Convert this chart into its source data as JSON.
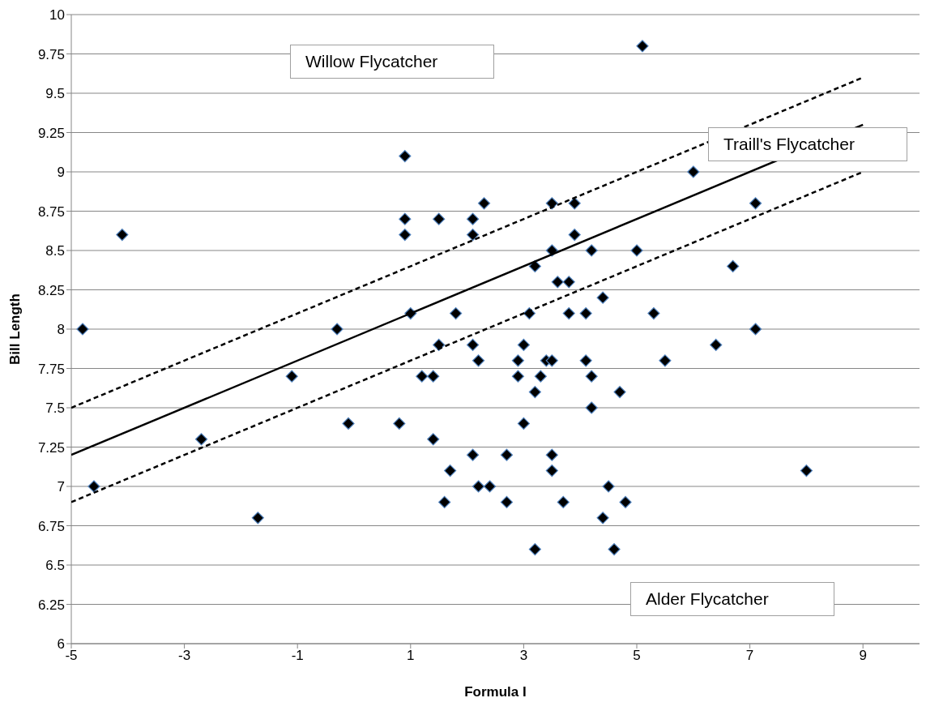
{
  "chart_data": {
    "type": "scatter",
    "xlabel": "Formula I",
    "ylabel": "Bill Length",
    "xlim": [
      -5,
      10
    ],
    "xticks": [
      -5,
      -3,
      -1,
      1,
      3,
      5,
      7,
      9
    ],
    "ylim": [
      6,
      10
    ],
    "yticks": [
      6,
      6.25,
      6.5,
      6.75,
      7,
      7.25,
      7.5,
      7.75,
      8,
      8.25,
      8.5,
      8.75,
      9,
      9.25,
      9.5,
      9.75,
      10
    ],
    "grid": "y",
    "legend": false,
    "marker": "diamond",
    "annotations": [
      "Willow Flycatcher",
      "Traill's Flycatcher",
      "Alder Flycatcher"
    ],
    "series": [
      {
        "color": "#000000",
        "x": [
          -4.8,
          -4.1,
          -2.7,
          -4.6,
          -1.7,
          -1.1,
          -0.3,
          -0.1,
          0.9,
          0.9,
          0.9,
          1.0,
          0.8,
          1.5,
          1.5,
          1.2,
          1.4,
          1.4,
          1.8,
          1.7,
          1.6,
          2.1,
          2.1,
          2.3,
          2.1,
          2.2,
          2.1,
          2.2,
          2.4,
          2.7,
          2.7,
          2.9,
          2.9,
          3.0,
          3.0,
          3.1,
          3.2,
          3.2,
          3.3,
          3.4,
          3.2,
          3.5,
          3.5,
          3.6,
          3.5,
          3.5,
          3.5,
          3.7,
          3.9,
          3.9,
          3.8,
          3.8,
          4.1,
          4.1,
          4.2,
          4.2,
          4.2,
          4.4,
          4.7,
          4.5,
          4.4,
          4.8,
          4.6,
          5.1,
          5.0,
          5.3,
          5.5,
          6.0,
          6.4,
          6.7,
          7.1,
          7.1,
          8.0
        ],
        "values": [
          8.0,
          8.6,
          7.3,
          7.0,
          6.8,
          7.7,
          8.0,
          7.4,
          9.1,
          8.7,
          8.6,
          8.1,
          7.4,
          8.7,
          7.9,
          7.7,
          7.7,
          7.3,
          8.1,
          7.1,
          6.9,
          8.7,
          8.6,
          8.8,
          7.9,
          7.8,
          7.2,
          7.0,
          7.0,
          7.2,
          6.9,
          7.8,
          7.7,
          7.9,
          7.4,
          8.1,
          8.4,
          7.6,
          7.7,
          7.8,
          6.6,
          8.8,
          8.5,
          8.3,
          7.8,
          7.2,
          7.1,
          6.9,
          8.8,
          8.6,
          8.3,
          8.1,
          8.1,
          7.8,
          8.5,
          7.7,
          7.5,
          8.2,
          7.6,
          7.0,
          6.8,
          6.9,
          6.6,
          9.8,
          8.5,
          8.1,
          7.8,
          9.0,
          7.9,
          8.4,
          8.8,
          8.0,
          7.1
        ]
      },
      {
        "type": "line",
        "marker": "none",
        "color": "#000000",
        "line_style": "dashed",
        "x": [
          -5,
          9
        ],
        "values": [
          7.5,
          9.6
        ]
      },
      {
        "type": "line",
        "marker": "none",
        "color": "#000000",
        "line_style": "solid",
        "x": [
          -5,
          9
        ],
        "values": [
          7.2,
          9.3
        ]
      },
      {
        "type": "line",
        "marker": "none",
        "color": "#000000",
        "line_style": "dashed",
        "x": [
          -5,
          9
        ],
        "values": [
          6.9,
          9.0
        ]
      }
    ]
  }
}
